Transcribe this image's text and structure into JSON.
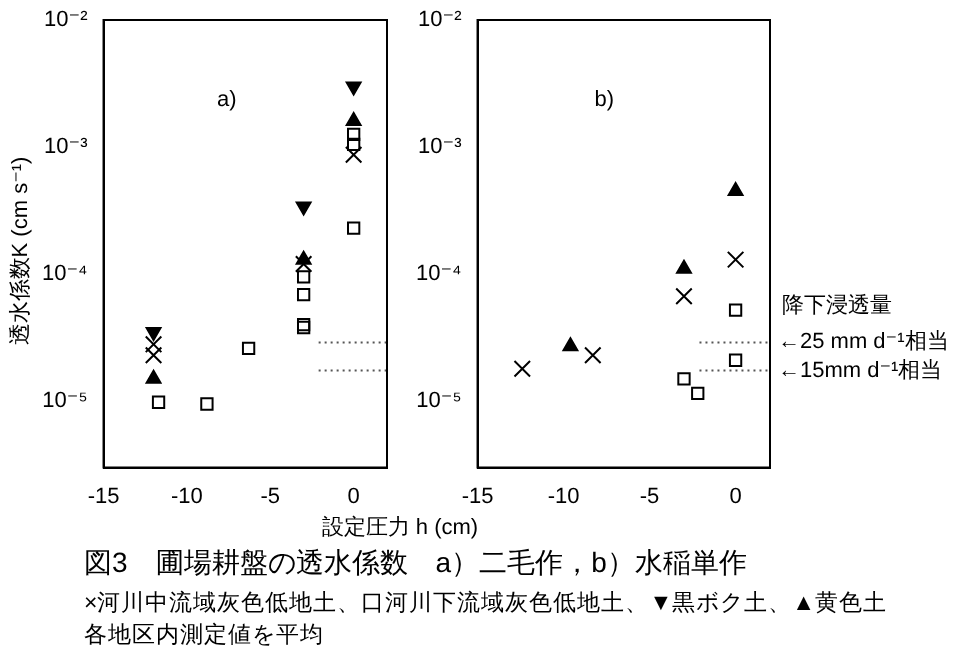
{
  "chart_data": [
    {
      "type": "scatter",
      "title": "図3　圃場耕盤の透水係数　a）二毛作，b）水稲単作",
      "xlabel": "設定圧力 h (cm)",
      "ylabel": "透水係数K (cm s⁻¹)",
      "annotations": [
        "a)",
        "×河川中流域灰色低地土、口河川下流域灰色低地土、▼黒ボク土、▲黄色土",
        "各地区内測定値を平均"
      ],
      "xlim": [
        -15,
        2
      ],
      "xticks": [
        -15,
        -10,
        -5,
        0
      ],
      "ylim": [
        3e-06,
        0.01
      ],
      "log": true,
      "yticks": [
        {
          "value": 1e-05,
          "label": "10⁻⁵"
        },
        {
          "value": 0.0001,
          "label": "10⁻⁴"
        },
        {
          "value": 0.001,
          "label": "10⁻³"
        },
        {
          "value": 0.01,
          "label": "10⁻²"
        }
      ],
      "series": [
        {
          "type": "scatter",
          "marker": "cross",
          "color": "#000000",
          "x": [
            -12,
            -12,
            -3,
            0
          ],
          "values": [
            2.8e-05,
            2.3e-05,
            0.00012,
            0.00087
          ]
        },
        {
          "type": "scatter",
          "marker": "square",
          "color": "#000000",
          "x": [
            -11.7,
            -8.8,
            -6.3,
            -3,
            -3,
            -3,
            -3,
            0,
            0,
            0
          ],
          "values": [
            9.8e-06,
            9.5e-06,
            2.6e-05,
            3.8e-05,
            4e-05,
            6.9e-05,
            9.5e-05,
            0.00023,
            0.00105,
            0.00126
          ]
        },
        {
          "type": "scatter",
          "marker": "triangle_down",
          "color": "#000000",
          "x": [
            -12,
            -3,
            0
          ],
          "values": [
            3.5e-05,
            0.00034,
            0.003
          ]
        },
        {
          "type": "scatter",
          "marker": "triangle",
          "color": "#000000",
          "x": [
            -12,
            -3,
            0
          ],
          "values": [
            1.5e-05,
            0.00013,
            0.0016
          ]
        },
        {
          "type": "line",
          "marker": "none",
          "line_style": "dotted",
          "color": "#555555",
          "x": [
            -2.1,
            2
          ],
          "values": [
            2.9e-05,
            2.9e-05
          ]
        },
        {
          "type": "line",
          "marker": "none",
          "line_style": "dotted",
          "color": "#555555",
          "x": [
            -2.1,
            2
          ],
          "values": [
            1.74e-05,
            1.74e-05
          ]
        }
      ]
    },
    {
      "type": "scatter",
      "annotations": [
        "b)",
        "降下浸透量",
        {
          "text": "←25 mm d⁻¹相当",
          "x": 2,
          "y": 2.9e-05
        },
        {
          "text": "←15mm d⁻¹相当",
          "x": 2,
          "y": 1.74e-05
        }
      ],
      "xlim": [
        -15,
        2
      ],
      "xticks": [
        -15,
        -10,
        -5,
        0
      ],
      "ylim": [
        3e-06,
        0.01
      ],
      "log": true,
      "yticks": [
        {
          "value": 1e-05,
          "label": "10⁻⁵"
        },
        {
          "value": 0.0001,
          "label": "10⁻⁴"
        },
        {
          "value": 0.001,
          "label": "10⁻³"
        },
        {
          "value": 0.01,
          "label": "10⁻²"
        }
      ],
      "series": [
        {
          "type": "scatter",
          "marker": "cross",
          "color": "#000000",
          "x": [
            -12.4,
            -8.3,
            -3,
            0
          ],
          "values": [
            1.8e-05,
            2.3e-05,
            6.7e-05,
            0.00013
          ]
        },
        {
          "type": "scatter",
          "marker": "square",
          "color": "#000000",
          "x": [
            -3,
            -2.2,
            0,
            0
          ],
          "values": [
            1.5e-05,
            1.15e-05,
            2.1e-05,
            5.2e-05
          ]
        },
        {
          "type": "scatter",
          "marker": "triangle",
          "color": "#000000",
          "x": [
            -9.6,
            -3,
            0
          ],
          "values": [
            2.7e-05,
            0.00011,
            0.00045
          ]
        },
        {
          "type": "line",
          "marker": "none",
          "line_style": "dotted",
          "color": "#555555",
          "x": [
            -2.1,
            2
          ],
          "values": [
            2.9e-05,
            2.9e-05
          ]
        },
        {
          "type": "line",
          "marker": "none",
          "line_style": "dotted",
          "color": "#555555",
          "x": [
            -2.1,
            2
          ],
          "values": [
            1.74e-05,
            1.74e-05
          ]
        }
      ]
    }
  ]
}
